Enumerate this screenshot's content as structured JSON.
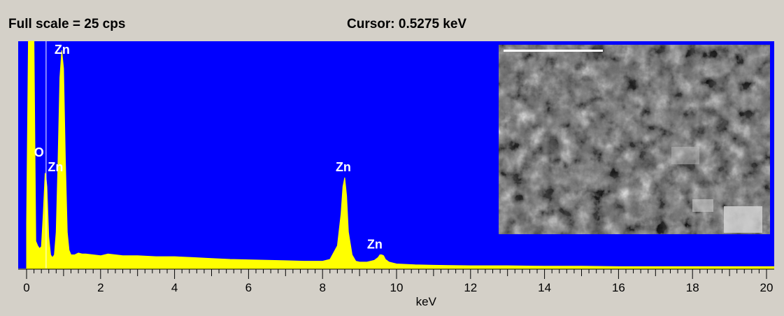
{
  "header": {
    "full_scale": "Full scale = 25  cps",
    "cursor": "Cursor:  0.5275 keV"
  },
  "colors": {
    "background": "#d4d0c8",
    "plot_bg": "#0000ff",
    "spectrum": "#ffff00",
    "label": "#ffffff"
  },
  "chart_data": {
    "type": "area",
    "title": "",
    "xlabel": "keV",
    "ylabel": "",
    "xlim": [
      0,
      20.2
    ],
    "ylim": [
      0,
      25
    ],
    "x_ticks": [
      0,
      2,
      4,
      6,
      8,
      10,
      12,
      14,
      16,
      18,
      20
    ],
    "x_tick_labels": [
      "0",
      "2",
      "4",
      "6",
      "8",
      "10",
      "12",
      "14",
      "16",
      "18",
      "20"
    ],
    "cursor_kev": 0.5275,
    "series": [
      {
        "x": [
          0,
          0.05,
          0.1,
          0.15,
          0.2,
          0.25,
          0.3,
          0.35,
          0.4,
          0.45,
          0.5,
          0.52,
          0.55,
          0.6,
          0.65,
          0.7,
          0.75,
          0.8,
          0.85,
          0.9,
          0.95,
          1.0,
          1.05,
          1.1,
          1.15,
          1.2,
          1.3,
          1.4,
          1.5,
          1.6,
          1.8,
          2.0,
          2.2,
          2.4,
          2.6,
          3.0,
          3.5,
          4.0,
          4.5,
          5.0,
          5.5,
          6.0,
          6.5,
          7.0,
          7.5,
          8.0,
          8.2,
          8.4,
          8.5,
          8.55,
          8.6,
          8.65,
          8.7,
          8.8,
          8.9,
          9.0,
          9.2,
          9.4,
          9.5,
          9.55,
          9.6,
          9.65,
          9.7,
          9.8,
          10.0,
          10.5,
          11.0,
          12.0,
          13.0,
          14.0,
          15.0,
          16.0,
          17.0,
          18.0,
          19.0,
          20.0,
          20.2
        ],
        "y": [
          5,
          25,
          25,
          25,
          25,
          3,
          2.5,
          2.2,
          2.4,
          6,
          10.5,
          10.2,
          9,
          3.5,
          1.5,
          1.2,
          1.5,
          4,
          12,
          21,
          24,
          22,
          12,
          4,
          2,
          1.5,
          1.5,
          1.7,
          1.6,
          1.6,
          1.5,
          1.4,
          1.6,
          1.5,
          1.4,
          1.4,
          1.3,
          1.3,
          1.2,
          1.1,
          1.0,
          0.95,
          0.9,
          0.85,
          0.8,
          0.8,
          1.0,
          2.5,
          6,
          9,
          10,
          8,
          4,
          1.5,
          0.8,
          0.7,
          0.7,
          0.9,
          1.2,
          1.5,
          1.5,
          1.4,
          1.0,
          0.7,
          0.5,
          0.4,
          0.35,
          0.3,
          0.3,
          0.25,
          0.25,
          0.2,
          0.2,
          0.2,
          0.2,
          0.2,
          0.2
        ]
      }
    ],
    "annotations": [
      {
        "text": "Zn",
        "x": 1.0,
        "y": 23.6
      },
      {
        "text": "O",
        "x": 0.45,
        "y": 12.3
      },
      {
        "text": "Zn",
        "x": 0.82,
        "y": 10.7
      },
      {
        "text": "Zn",
        "x": 8.6,
        "y": 10.7
      },
      {
        "text": "Zn",
        "x": 9.45,
        "y": 2.2
      }
    ]
  }
}
